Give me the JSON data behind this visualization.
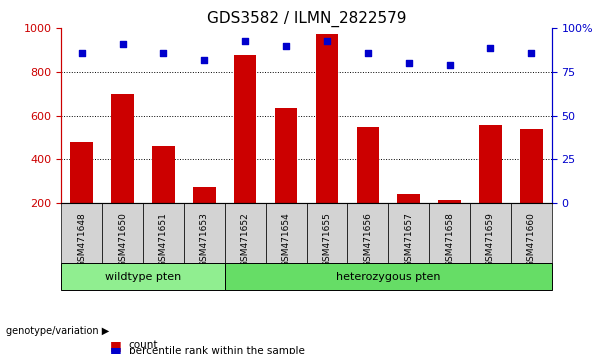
{
  "title": "GDS3582 / ILMN_2822579",
  "samples": [
    "GSM471648",
    "GSM471650",
    "GSM471651",
    "GSM471653",
    "GSM471652",
    "GSM471654",
    "GSM471655",
    "GSM471656",
    "GSM471657",
    "GSM471658",
    "GSM471659",
    "GSM471660"
  ],
  "counts": [
    480,
    700,
    460,
    275,
    880,
    635,
    975,
    550,
    240,
    215,
    555,
    540
  ],
  "percentiles": [
    86,
    91,
    86,
    82,
    93,
    90,
    93,
    86,
    80,
    79,
    89,
    86
  ],
  "wildtype_count": 4,
  "heterozygous_count": 8,
  "wildtype_label": "wildtype pten",
  "heterozygous_label": "heterozygous pten",
  "genotype_label": "genotype/variation",
  "count_label": "count",
  "percentile_label": "percentile rank within the sample",
  "ylim_left": [
    200,
    1000
  ],
  "ylim_right": [
    0,
    100
  ],
  "yticks_left": [
    200,
    400,
    600,
    800,
    1000
  ],
  "yticks_right": [
    0,
    25,
    50,
    75,
    100
  ],
  "bar_color": "#cc0000",
  "scatter_color": "#0000cc",
  "wildtype_bg": "#90ee90",
  "hetero_bg": "#66dd66",
  "sample_bg": "#d3d3d3",
  "grid_color": "#000000",
  "title_fontsize": 11,
  "tick_fontsize": 8,
  "label_fontsize": 8
}
